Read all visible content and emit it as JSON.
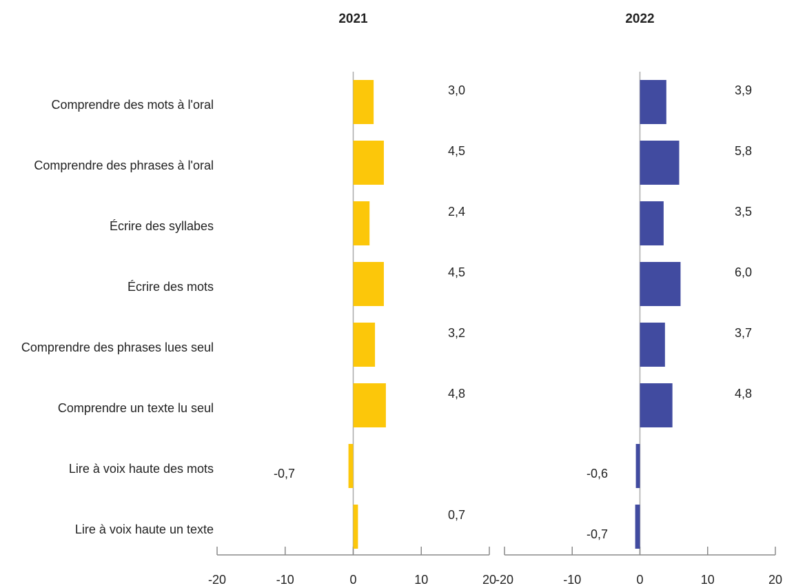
{
  "chart_data": [
    {
      "type": "bar",
      "orientation": "horizontal",
      "title": "2021",
      "color": "#fcc70a",
      "categories": [
        "Comprendre des mots à l'oral",
        "Comprendre des phrases à l'oral",
        "Écrire des syllabes",
        "Écrire des mots",
        "Comprendre des phrases lues seul",
        "Comprendre un texte lu seul",
        "Lire à voix haute des mots",
        "Lire à voix haute un texte"
      ],
      "values": [
        3.0,
        4.5,
        2.4,
        4.5,
        3.2,
        4.8,
        -0.7,
        0.7
      ],
      "value_labels": [
        "3,0",
        "4,5",
        "2,4",
        "4,5",
        "3,2",
        "4,8",
        "-0,7",
        "0,7"
      ],
      "xlim": [
        -20,
        20
      ],
      "xticks": [
        -20,
        -10,
        0,
        10,
        20
      ]
    },
    {
      "type": "bar",
      "orientation": "horizontal",
      "title": "2022",
      "color": "#414ba0",
      "values": [
        3.9,
        5.8,
        3.5,
        6.0,
        3.7,
        4.8,
        -0.6,
        -0.7
      ],
      "value_labels": [
        "3,9",
        "5,8",
        "3,5",
        "6,0",
        "3,7",
        "4,8",
        "-0,6",
        "-0,7"
      ],
      "xlim": [
        -20,
        20
      ],
      "xticks": [
        -20,
        -10,
        0,
        10,
        20
      ]
    }
  ]
}
